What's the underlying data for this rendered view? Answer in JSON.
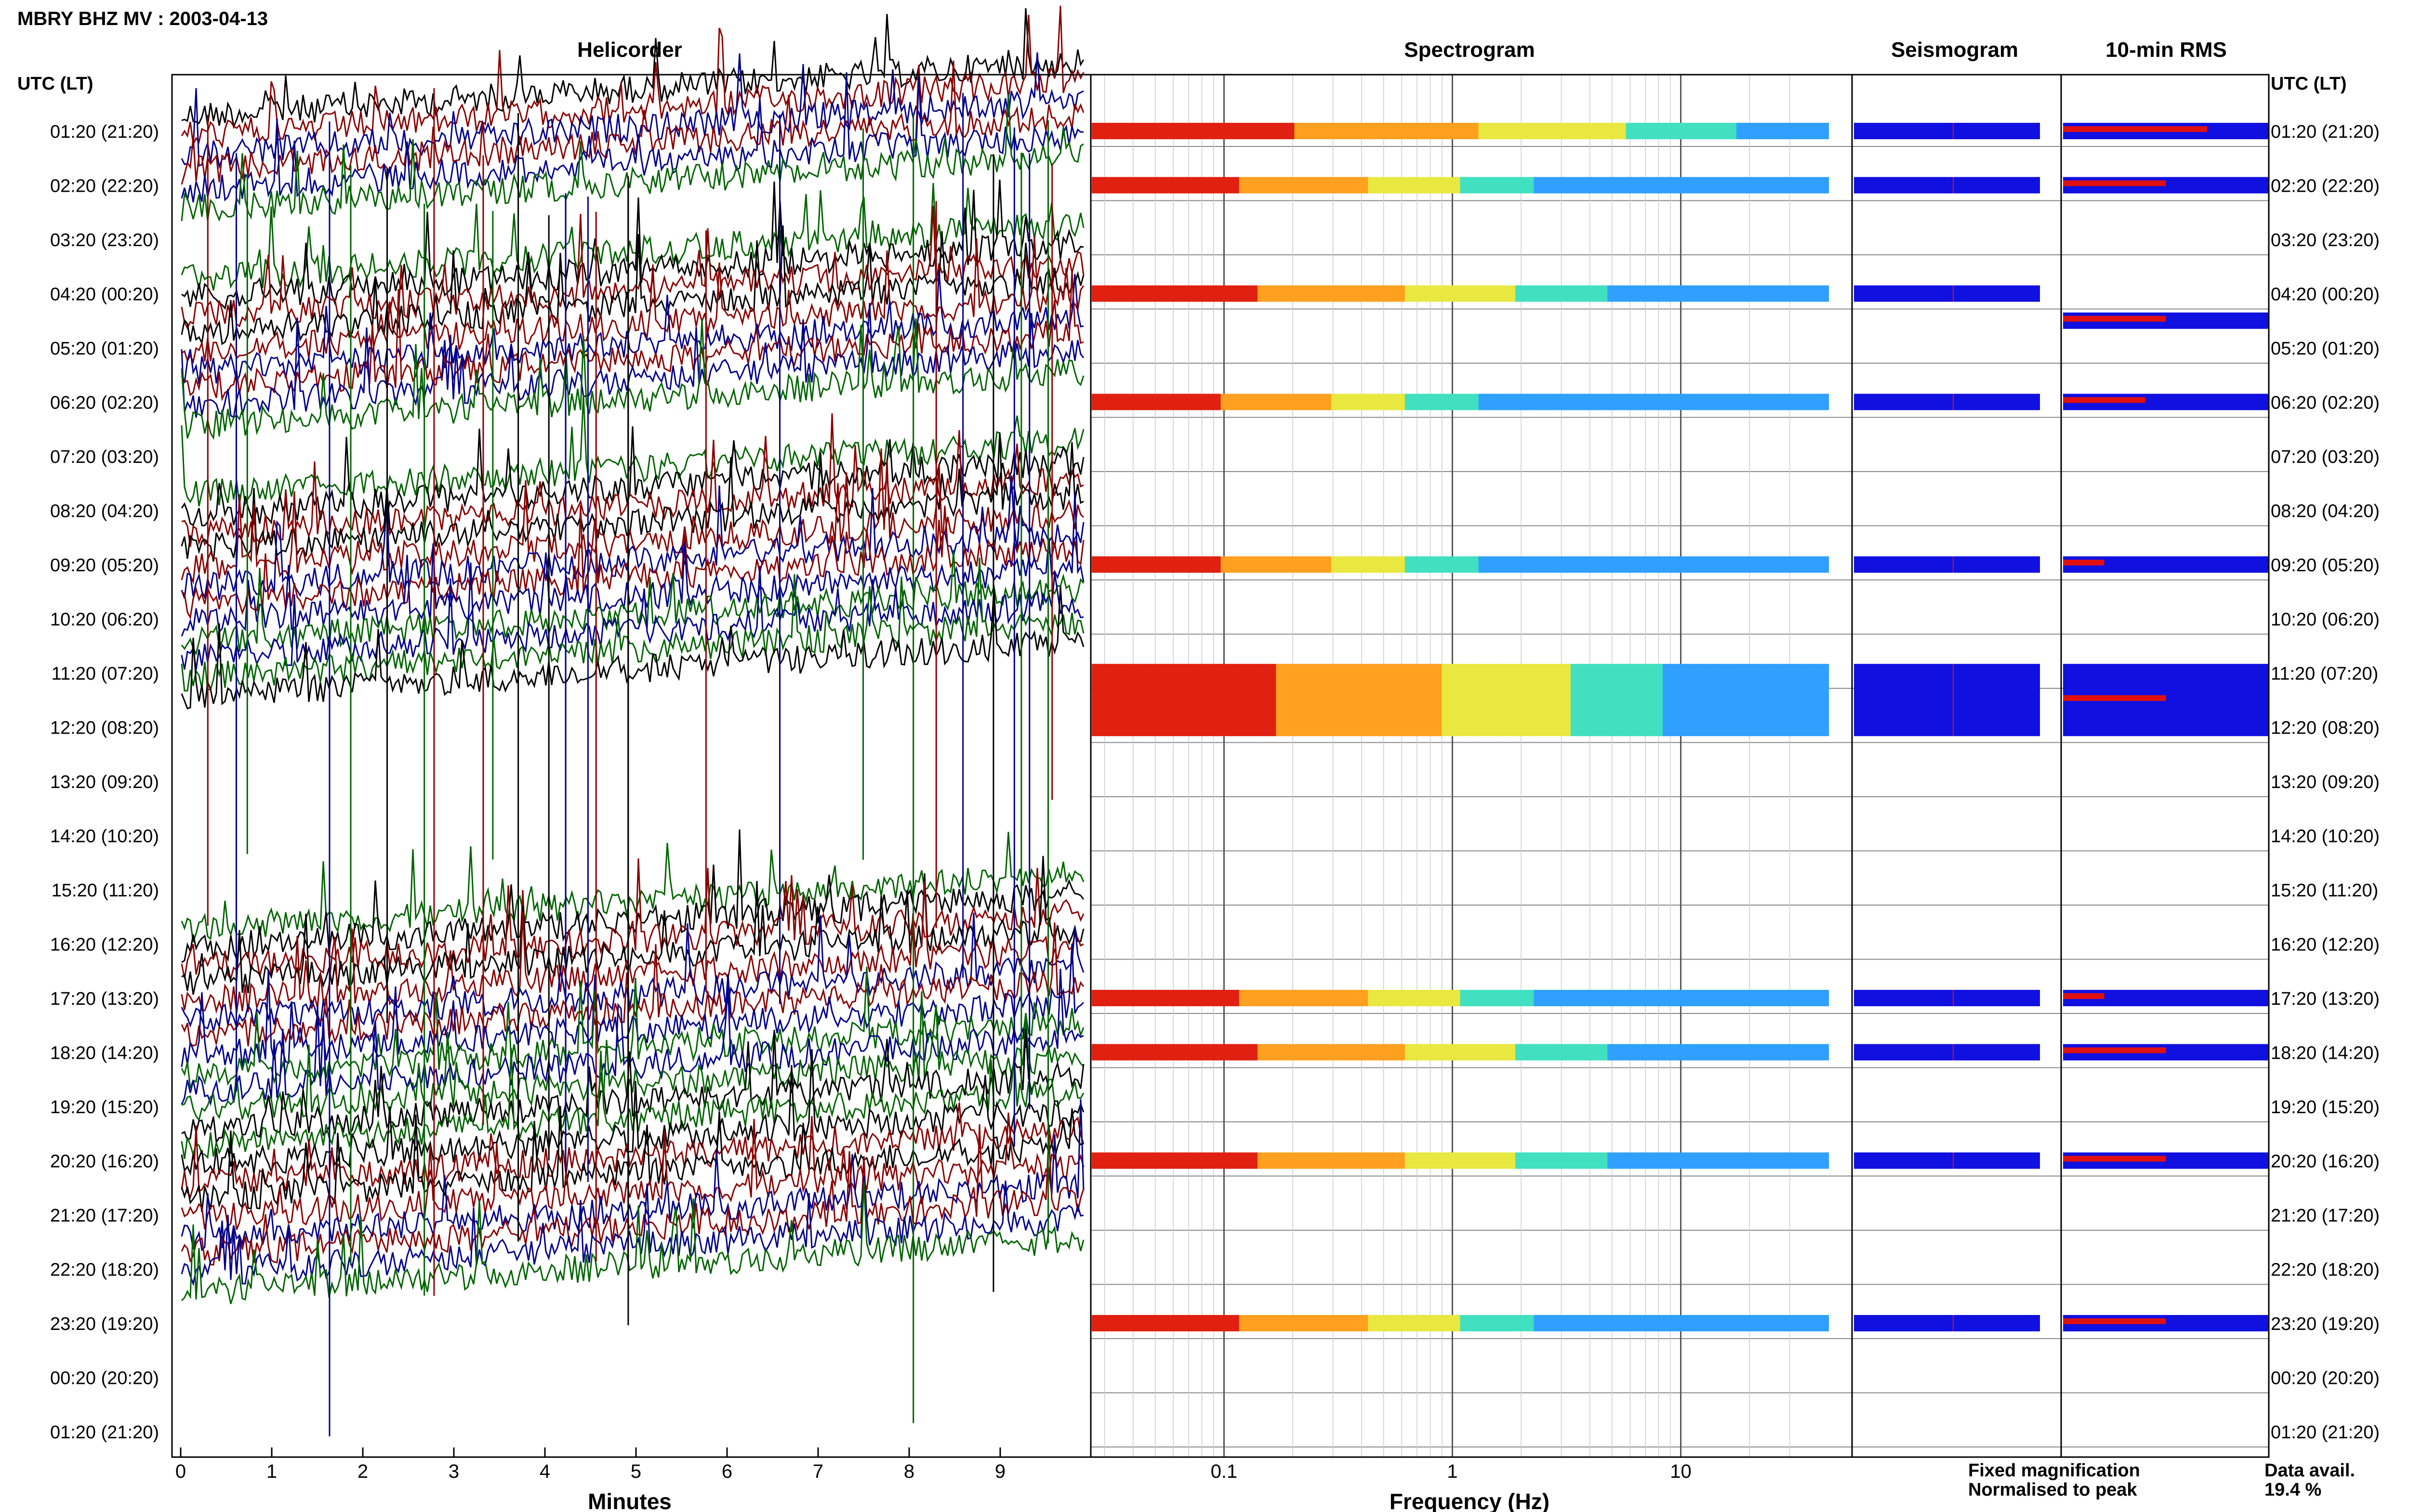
{
  "header": {
    "title": "MBRY BHZ MV : 2003-04-13"
  },
  "panels": {
    "helicorder": "Helicorder",
    "spectrogram": "Spectrogram",
    "seismogram": "Seismogram",
    "rms": "10-min RMS"
  },
  "axes": {
    "left_header": "UTC (LT)",
    "right_header": "UTC (LT)",
    "time_labels": [
      "01:20 (21:20)",
      "02:20 (22:20)",
      "03:20 (23:20)",
      "04:20 (00:20)",
      "05:20 (01:20)",
      "06:20 (02:20)",
      "07:20 (03:20)",
      "08:20 (04:20)",
      "09:20 (05:20)",
      "10:20 (06:20)",
      "11:20 (07:20)",
      "12:20 (08:20)",
      "13:20 (09:20)",
      "14:20 (10:20)",
      "15:20 (11:20)",
      "16:20 (12:20)",
      "17:20 (13:20)",
      "18:20 (14:20)",
      "19:20 (15:20)",
      "20:20 (16:20)",
      "21:20 (17:20)",
      "22:20 (18:20)",
      "23:20 (19:20)",
      "00:20 (20:20)",
      "01:20 (21:20)"
    ],
    "minutes_label": "Minutes",
    "minutes_ticks": [
      "0",
      "1",
      "2",
      "3",
      "4",
      "5",
      "6",
      "7",
      "8",
      "9"
    ],
    "frequency_label": "Frequency (Hz)",
    "frequency_ticks": [
      "0.1",
      "1",
      "10"
    ]
  },
  "legend": {
    "fixed": "Fixed magnification",
    "normalised": "Normalised to peak",
    "fixed_color": "#1010e0",
    "normalised_color": "#e01010"
  },
  "availability": {
    "label": "Data avail.",
    "value": "19.4 %"
  },
  "chart_data": {
    "type": "heatmap",
    "title": "MBRY BHZ MV : 2003-04-13",
    "xlabel": "Minutes",
    "xlim": [
      0,
      10
    ],
    "freq_xlabel": "Frequency (Hz)",
    "freq_scale": "log",
    "rows": 25,
    "helicorder_trace_colors": [
      "#000000",
      "#8b0000",
      "#00008b",
      "#006400"
    ],
    "active_rows": [
      0,
      1,
      3,
      4,
      5,
      7,
      8,
      9,
      10,
      15,
      16,
      17,
      18,
      19,
      20,
      21
    ],
    "spectrogram_bands": [
      {
        "row": 0,
        "intensity": 1.0
      },
      {
        "row": 1,
        "intensity": 0.7
      },
      {
        "row": 3,
        "intensity": 0.8
      },
      {
        "row": 5,
        "intensity": 0.6
      },
      {
        "row": 8,
        "intensity": 0.6
      },
      {
        "row": 10.5,
        "intensity": 0.9
      },
      {
        "row": 16,
        "intensity": 0.7
      },
      {
        "row": 17,
        "intensity": 0.8
      },
      {
        "row": 19,
        "intensity": 0.8
      },
      {
        "row": 22,
        "intensity": 0.7
      }
    ],
    "rms_bars": [
      {
        "row": 0,
        "value": 0.7
      },
      {
        "row": 1,
        "value": 0.5
      },
      {
        "row": 3.5,
        "value": 0.5
      },
      {
        "row": 5,
        "value": 0.4
      },
      {
        "row": 8,
        "value": 0.2
      },
      {
        "row": 10.5,
        "value": 0.5
      },
      {
        "row": 16,
        "value": 0.2
      },
      {
        "row": 17,
        "value": 0.5
      },
      {
        "row": 19,
        "value": 0.5
      },
      {
        "row": 22,
        "value": 0.5
      }
    ]
  }
}
